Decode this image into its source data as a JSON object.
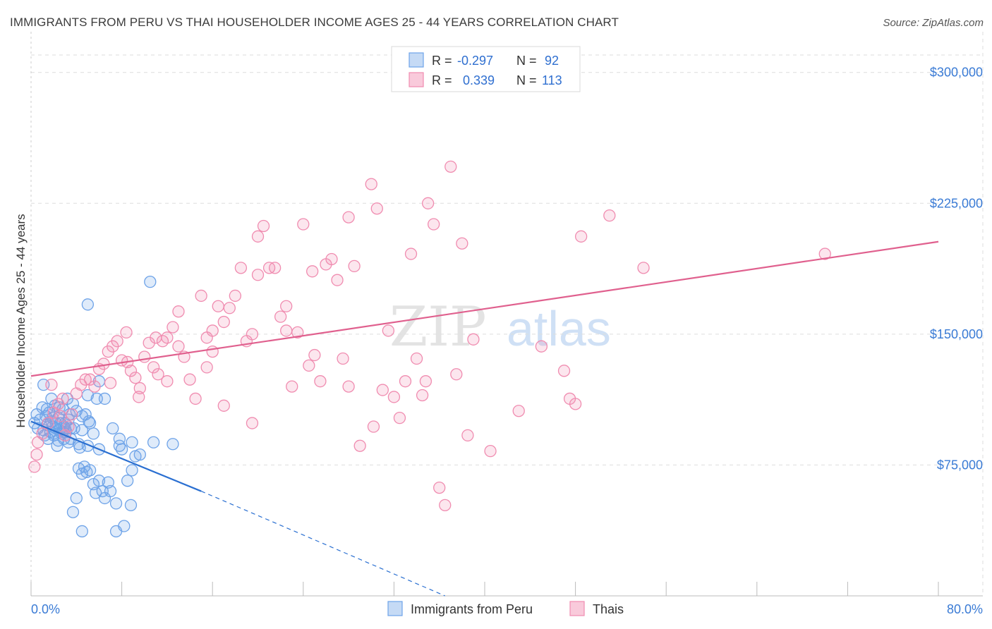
{
  "chart_data": {
    "type": "scatter",
    "title": "IMMIGRANTS FROM PERU VS THAI HOUSEHOLDER INCOME AGES 25 - 44 YEARS CORRELATION CHART",
    "source": "Source: ZipAtlas.com",
    "watermark": {
      "zip": "ZIP",
      "atlas": "atlas"
    },
    "ylabel": "Householder Income Ages 25 - 44 years",
    "xlim": [
      0,
      80
    ],
    "ylim": [
      0,
      310000
    ],
    "x_tick_labels": {
      "left": "0.0%",
      "right": "80.0%"
    },
    "y_ticks": [
      {
        "value": 75000,
        "label": "$75,000"
      },
      {
        "value": 150000,
        "label": "$150,000"
      },
      {
        "value": 225000,
        "label": "$225,000"
      },
      {
        "value": 300000,
        "label": "$300,000"
      }
    ],
    "legend": [
      {
        "r_label": "R =",
        "r_value": "-0.297",
        "n_label": "N =",
        "n_value": "92"
      },
      {
        "r_label": "R =",
        "r_value": "0.339",
        "n_label": "N =",
        "n_value": "113"
      }
    ],
    "series": [
      {
        "name": "Immigrants from Peru",
        "color": "#6ea3e8",
        "line_color": "#2a6fd1",
        "trend": {
          "x0": 0,
          "y0": 100000,
          "x1": 15,
          "y1": 60000,
          "dash_to_x": 36.5,
          "dash_to_y": 0
        },
        "points": [
          [
            0.3,
            99000
          ],
          [
            0.5,
            104000
          ],
          [
            0.6,
            96000
          ],
          [
            0.8,
            101000
          ],
          [
            1.0,
            108000
          ],
          [
            1.1,
            95000
          ],
          [
            1.2,
            92000
          ],
          [
            1.3,
            103000
          ],
          [
            1.4,
            98000
          ],
          [
            1.5,
            90000
          ],
          [
            1.6,
            105000
          ],
          [
            1.7,
            94000
          ],
          [
            1.8,
            100000
          ],
          [
            1.9,
            97000
          ],
          [
            2.0,
            93000
          ],
          [
            2.1,
            109000
          ],
          [
            2.2,
            96000
          ],
          [
            2.3,
            86000
          ],
          [
            2.4,
            102000
          ],
          [
            2.5,
            95000
          ],
          [
            2.6,
            99000
          ],
          [
            2.7,
            93000
          ],
          [
            2.8,
            107000
          ],
          [
            2.9,
            97000
          ],
          [
            3.0,
            96000
          ],
          [
            3.1,
            94000
          ],
          [
            3.2,
            113000
          ],
          [
            3.3,
            88000
          ],
          [
            3.4,
            104000
          ],
          [
            3.5,
            96000
          ],
          [
            1.1,
            121000
          ],
          [
            1.4,
            107000
          ],
          [
            1.8,
            113000
          ],
          [
            2.0,
            92000
          ],
          [
            2.2,
            99000
          ],
          [
            2.5,
            108000
          ],
          [
            2.8,
            94000
          ],
          [
            3.0,
            99000
          ],
          [
            3.3,
            101000
          ],
          [
            3.5,
            90000
          ],
          [
            3.8,
            96000
          ],
          [
            4.0,
            106000
          ],
          [
            4.3,
            85000
          ],
          [
            4.5,
            95000
          ],
          [
            4.8,
            104000
          ],
          [
            5.0,
            86000
          ],
          [
            5.2,
            99000
          ],
          [
            5.5,
            93000
          ],
          [
            5.8,
            113000
          ],
          [
            6.0,
            84000
          ],
          [
            4.2,
            73000
          ],
          [
            4.5,
            70000
          ],
          [
            4.7,
            74000
          ],
          [
            4.9,
            71000
          ],
          [
            5.2,
            72000
          ],
          [
            6.0,
            66000
          ],
          [
            6.3,
            60000
          ],
          [
            6.8,
            65000
          ],
          [
            7.0,
            60000
          ],
          [
            7.5,
            53000
          ],
          [
            7.8,
            86000
          ],
          [
            8.0,
            84000
          ],
          [
            8.5,
            66000
          ],
          [
            8.8,
            52000
          ],
          [
            5.5,
            64000
          ],
          [
            6.5,
            56000
          ],
          [
            8.2,
            40000
          ],
          [
            7.5,
            37000
          ],
          [
            4.5,
            37000
          ],
          [
            3.7,
            48000
          ],
          [
            6.0,
            123000
          ],
          [
            6.5,
            113000
          ],
          [
            5.0,
            115000
          ],
          [
            4.5,
            103000
          ],
          [
            3.7,
            110000
          ],
          [
            2.9,
            90000
          ],
          [
            2.4,
            89000
          ],
          [
            1.9,
            102000
          ],
          [
            7.2,
            96000
          ],
          [
            7.8,
            90000
          ],
          [
            8.9,
            72000
          ],
          [
            9.6,
            81000
          ],
          [
            9.2,
            80000
          ],
          [
            10.8,
            88000
          ],
          [
            12.5,
            87000
          ],
          [
            8.9,
            88000
          ],
          [
            4.2,
            87000
          ],
          [
            10.5,
            180000
          ],
          [
            5.0,
            167000
          ],
          [
            5.1,
            100000
          ],
          [
            5.7,
            59000
          ],
          [
            4.0,
            56000
          ]
        ]
      },
      {
        "name": "Thais",
        "color": "#f08cb0",
        "line_color": "#e0608e",
        "trend": {
          "x0": 0,
          "y0": 126000,
          "x1": 80,
          "y1": 203000
        },
        "points": [
          [
            0.3,
            74000
          ],
          [
            0.5,
            81000
          ],
          [
            0.6,
            88000
          ],
          [
            1.0,
            93000
          ],
          [
            1.5,
            99000
          ],
          [
            2.0,
            105000
          ],
          [
            2.4,
            110000
          ],
          [
            2.8,
            113000
          ],
          [
            3.3,
            97000
          ],
          [
            3.6,
            104000
          ],
          [
            4.0,
            116000
          ],
          [
            4.4,
            121000
          ],
          [
            4.8,
            124000
          ],
          [
            5.2,
            124000
          ],
          [
            5.6,
            120000
          ],
          [
            6.0,
            130000
          ],
          [
            6.4,
            133000
          ],
          [
            6.8,
            140000
          ],
          [
            7.2,
            143000
          ],
          [
            7.6,
            146000
          ],
          [
            8.0,
            135000
          ],
          [
            8.4,
            151000
          ],
          [
            8.8,
            129000
          ],
          [
            9.2,
            125000
          ],
          [
            9.6,
            119000
          ],
          [
            10.0,
            137000
          ],
          [
            10.4,
            145000
          ],
          [
            10.8,
            131000
          ],
          [
            11.2,
            127000
          ],
          [
            11.6,
            146000
          ],
          [
            12.0,
            123000
          ],
          [
            12.5,
            154000
          ],
          [
            13.0,
            163000
          ],
          [
            13.5,
            137000
          ],
          [
            14.0,
            124000
          ],
          [
            14.5,
            113000
          ],
          [
            15.0,
            172000
          ],
          [
            15.5,
            148000
          ],
          [
            16.0,
            140000
          ],
          [
            16.5,
            166000
          ],
          [
            17.0,
            157000
          ],
          [
            17.5,
            165000
          ],
          [
            18.0,
            172000
          ],
          [
            18.5,
            188000
          ],
          [
            19.0,
            146000
          ],
          [
            19.5,
            150000
          ],
          [
            20.0,
            206000
          ],
          [
            20.5,
            212000
          ],
          [
            21.0,
            188000
          ],
          [
            21.5,
            188000
          ],
          [
            22.0,
            160000
          ],
          [
            22.5,
            166000
          ],
          [
            23.0,
            120000
          ],
          [
            23.5,
            151000
          ],
          [
            24.0,
            213000
          ],
          [
            24.5,
            132000
          ],
          [
            25.0,
            138000
          ],
          [
            25.5,
            123000
          ],
          [
            26.0,
            190000
          ],
          [
            26.5,
            193000
          ],
          [
            27.0,
            181000
          ],
          [
            27.5,
            136000
          ],
          [
            28.0,
            217000
          ],
          [
            28.5,
            189000
          ],
          [
            29.0,
            86000
          ],
          [
            30.0,
            236000
          ],
          [
            30.5,
            222000
          ],
          [
            31.0,
            118000
          ],
          [
            31.5,
            152000
          ],
          [
            32.0,
            114000
          ],
          [
            32.5,
            102000
          ],
          [
            33.0,
            123000
          ],
          [
            33.5,
            196000
          ],
          [
            34.0,
            136000
          ],
          [
            34.5,
            115000
          ],
          [
            35.0,
            225000
          ],
          [
            35.5,
            213000
          ],
          [
            36.0,
            62000
          ],
          [
            36.5,
            52000
          ],
          [
            37.0,
            246000
          ],
          [
            37.5,
            127000
          ],
          [
            38.0,
            202000
          ],
          [
            39.0,
            147000
          ],
          [
            40.5,
            83000
          ],
          [
            43.0,
            106000
          ],
          [
            45.0,
            143000
          ],
          [
            47.0,
            129000
          ],
          [
            47.5,
            113000
          ],
          [
            48.0,
            110000
          ],
          [
            48.5,
            206000
          ],
          [
            51.0,
            218000
          ],
          [
            54.0,
            188000
          ],
          [
            70.0,
            196000
          ],
          [
            1.8,
            121000
          ],
          [
            2.6,
            103000
          ],
          [
            3.0,
            92000
          ],
          [
            13.0,
            143000
          ],
          [
            15.5,
            131000
          ],
          [
            17.0,
            109000
          ],
          [
            19.5,
            99000
          ],
          [
            11.0,
            148000
          ],
          [
            9.5,
            114000
          ],
          [
            8.5,
            134000
          ],
          [
            7.0,
            122000
          ],
          [
            12.0,
            148000
          ],
          [
            16.0,
            152000
          ],
          [
            20.0,
            184000
          ],
          [
            22.5,
            152000
          ],
          [
            24.8,
            186000
          ],
          [
            28.0,
            120000
          ],
          [
            30.2,
            97000
          ],
          [
            34.8,
            123000
          ],
          [
            38.5,
            92000
          ]
        ]
      }
    ]
  }
}
